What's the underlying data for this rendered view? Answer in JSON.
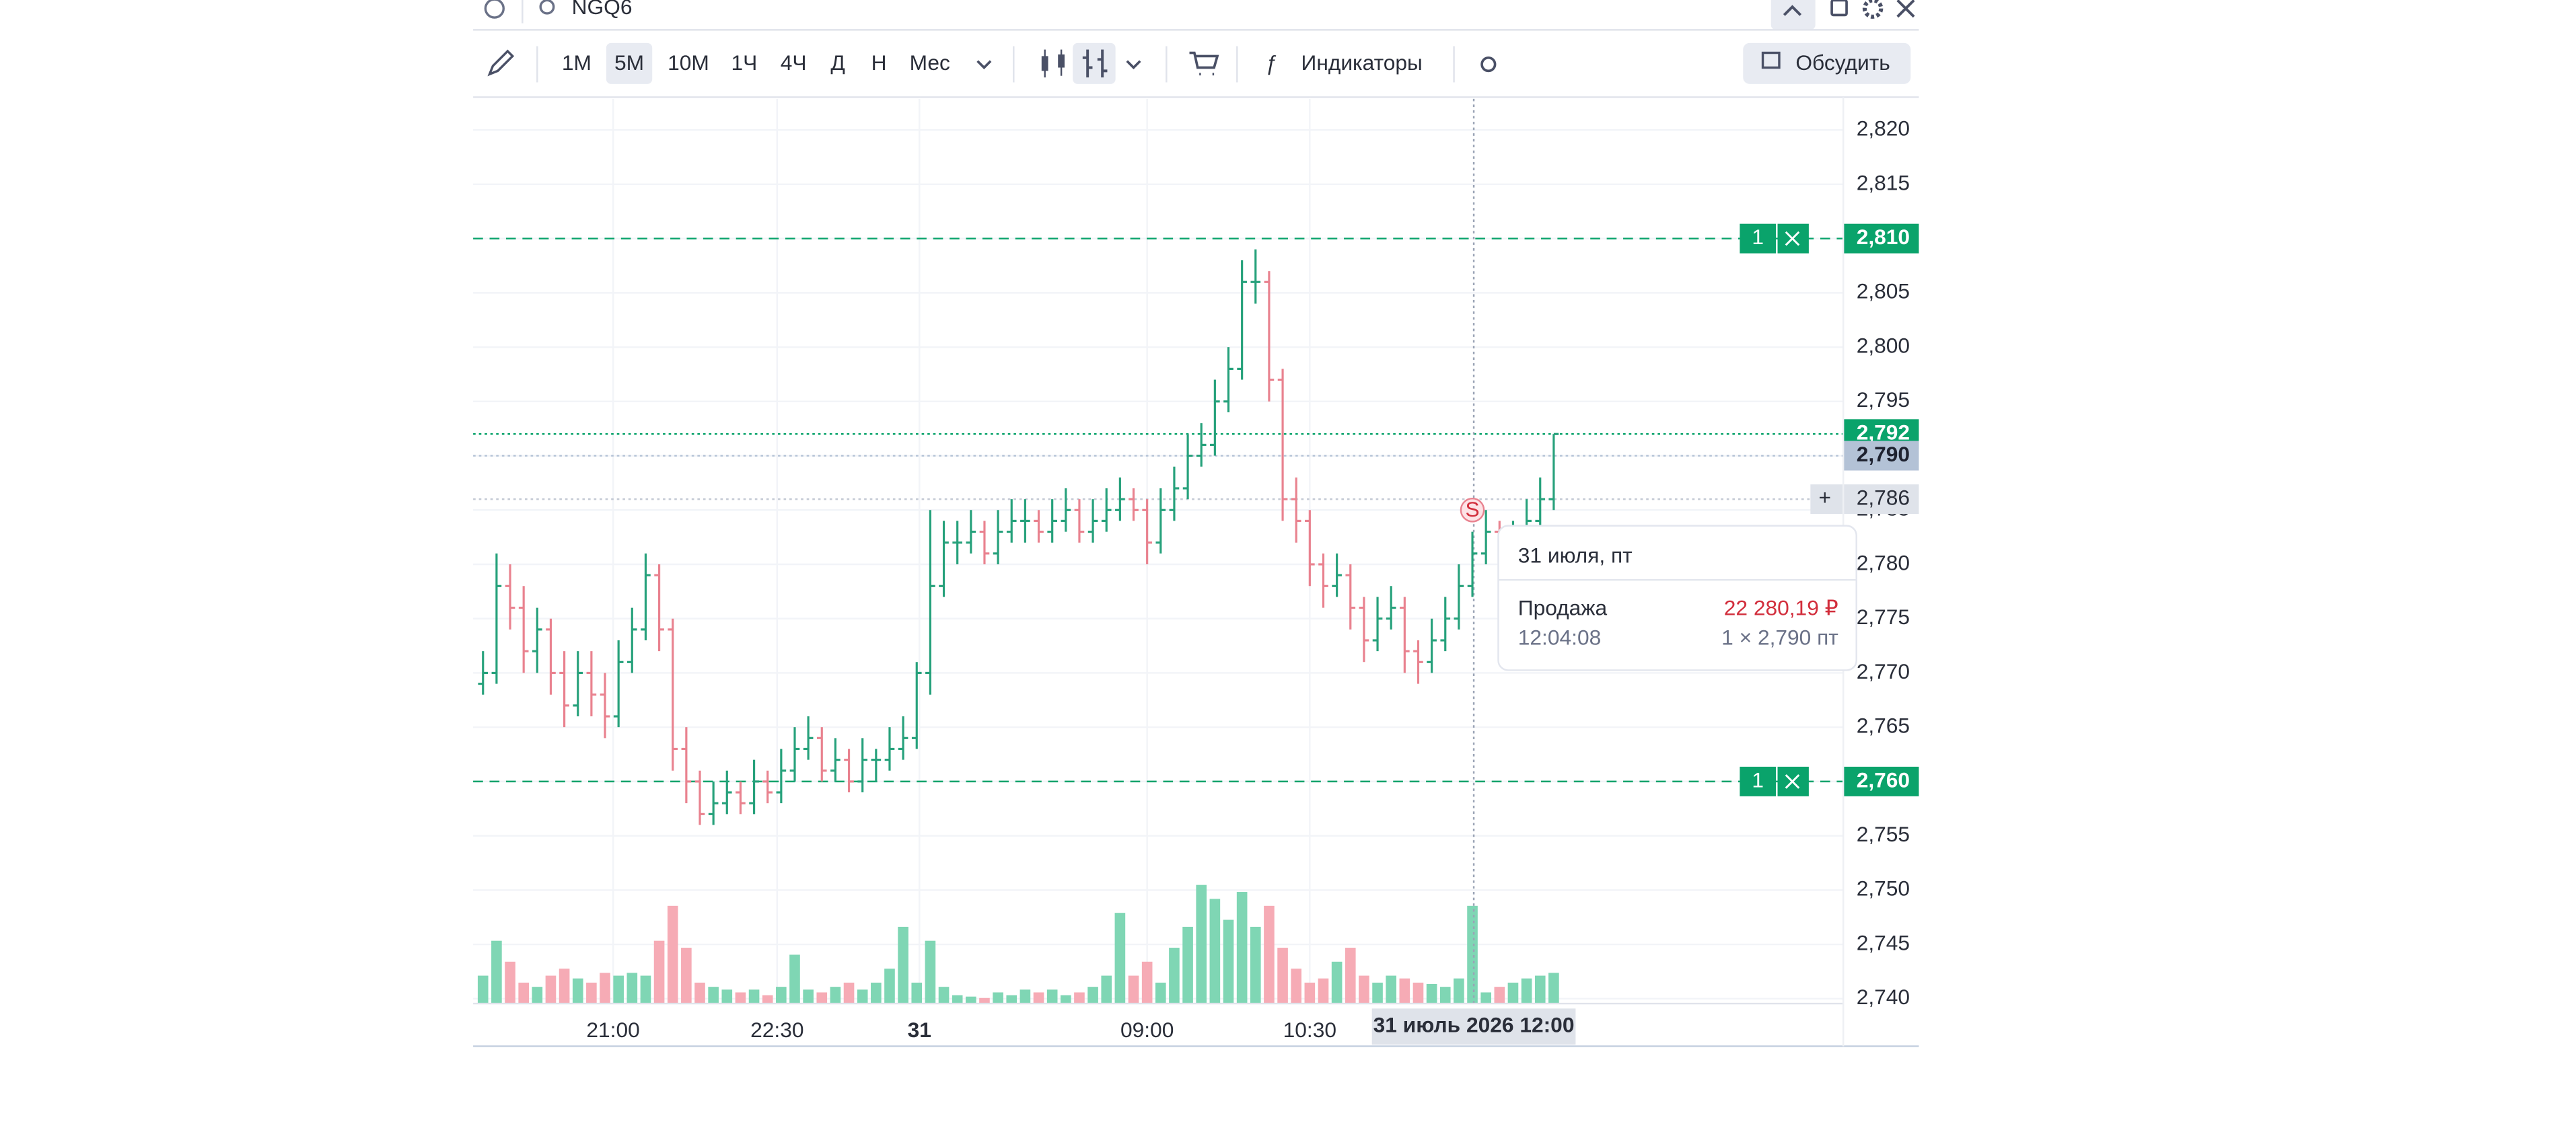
{
  "toolbar": {
    "symbol": "NGQ6",
    "timeframes": [
      "1М",
      "5М",
      "10М",
      "1Ч",
      "4Ч",
      "Д",
      "Н",
      "Мес"
    ],
    "selected_timeframe": 1,
    "indicators": "Индикаторы",
    "discuss": "Обсудить"
  },
  "chart_data": {
    "type": "ohlc",
    "up_color": "#26a17b",
    "down_color": "#e9828f",
    "ohlc": [
      [
        2.769,
        2.772,
        2.768,
        2.77
      ],
      [
        2.77,
        2.781,
        2.769,
        2.778
      ],
      [
        2.778,
        2.78,
        2.774,
        2.776
      ],
      [
        2.776,
        2.778,
        2.77,
        2.772
      ],
      [
        2.772,
        2.776,
        2.77,
        2.774
      ],
      [
        2.774,
        2.775,
        2.768,
        2.77
      ],
      [
        2.77,
        2.772,
        2.765,
        2.767
      ],
      [
        2.767,
        2.772,
        2.766,
        2.77
      ],
      [
        2.77,
        2.772,
        2.766,
        2.768
      ],
      [
        2.768,
        2.77,
        2.764,
        2.766
      ],
      [
        2.766,
        2.773,
        2.765,
        2.771
      ],
      [
        2.771,
        2.776,
        2.77,
        2.774
      ],
      [
        2.774,
        2.781,
        2.773,
        2.779
      ],
      [
        2.779,
        2.78,
        2.772,
        2.774
      ],
      [
        2.774,
        2.775,
        2.761,
        2.763
      ],
      [
        2.763,
        2.765,
        2.758,
        2.76
      ],
      [
        2.76,
        2.761,
        2.756,
        2.757
      ],
      [
        2.757,
        2.76,
        2.756,
        2.758
      ],
      [
        2.758,
        2.761,
        2.757,
        2.759
      ],
      [
        2.759,
        2.76,
        2.757,
        2.758
      ],
      [
        2.758,
        2.762,
        2.757,
        2.76
      ],
      [
        2.76,
        2.761,
        2.758,
        2.759
      ],
      [
        2.759,
        2.763,
        2.758,
        2.761
      ],
      [
        2.761,
        2.765,
        2.76,
        2.763
      ],
      [
        2.763,
        2.766,
        2.762,
        2.764
      ],
      [
        2.764,
        2.765,
        2.76,
        2.761
      ],
      [
        2.761,
        2.764,
        2.76,
        2.762
      ],
      [
        2.762,
        2.763,
        2.759,
        2.76
      ],
      [
        2.76,
        2.764,
        2.759,
        2.762
      ],
      [
        2.762,
        2.763,
        2.76,
        2.762
      ],
      [
        2.762,
        2.765,
        2.761,
        2.763
      ],
      [
        2.763,
        2.766,
        2.762,
        2.764
      ],
      [
        2.764,
        2.771,
        2.763,
        2.77
      ],
      [
        2.77,
        2.785,
        2.768,
        2.778
      ],
      [
        2.778,
        2.784,
        2.777,
        2.782
      ],
      [
        2.782,
        2.784,
        2.78,
        2.782
      ],
      [
        2.782,
        2.785,
        2.781,
        2.783
      ],
      [
        2.783,
        2.784,
        2.78,
        2.781
      ],
      [
        2.781,
        2.785,
        2.78,
        2.783
      ],
      [
        2.783,
        2.786,
        2.782,
        2.784
      ],
      [
        2.784,
        2.786,
        2.782,
        2.784
      ],
      [
        2.784,
        2.785,
        2.782,
        2.783
      ],
      [
        2.783,
        2.786,
        2.782,
        2.784
      ],
      [
        2.784,
        2.787,
        2.783,
        2.785
      ],
      [
        2.785,
        2.786,
        2.782,
        2.783
      ],
      [
        2.783,
        2.786,
        2.782,
        2.784
      ],
      [
        2.784,
        2.787,
        2.783,
        2.785
      ],
      [
        2.785,
        2.788,
        2.784,
        2.786
      ],
      [
        2.786,
        2.787,
        2.784,
        2.785
      ],
      [
        2.785,
        2.786,
        2.78,
        2.782
      ],
      [
        2.782,
        2.787,
        2.781,
        2.785
      ],
      [
        2.785,
        2.789,
        2.784,
        2.787
      ],
      [
        2.787,
        2.792,
        2.786,
        2.79
      ],
      [
        2.79,
        2.793,
        2.789,
        2.791
      ],
      [
        2.791,
        2.797,
        2.79,
        2.795
      ],
      [
        2.795,
        2.8,
        2.794,
        2.798
      ],
      [
        2.798,
        2.808,
        2.797,
        2.806
      ],
      [
        2.806,
        2.809,
        2.804,
        2.806
      ],
      [
        2.806,
        2.807,
        2.795,
        2.797
      ],
      [
        2.797,
        2.798,
        2.784,
        2.786
      ],
      [
        2.786,
        2.788,
        2.782,
        2.784
      ],
      [
        2.784,
        2.785,
        2.778,
        2.78
      ],
      [
        2.78,
        2.781,
        2.776,
        2.778
      ],
      [
        2.778,
        2.781,
        2.777,
        2.779
      ],
      [
        2.779,
        2.78,
        2.774,
        2.776
      ],
      [
        2.776,
        2.777,
        2.771,
        2.773
      ],
      [
        2.773,
        2.777,
        2.772,
        2.775
      ],
      [
        2.775,
        2.778,
        2.774,
        2.776
      ],
      [
        2.776,
        2.777,
        2.77,
        2.772
      ],
      [
        2.772,
        2.773,
        2.769,
        2.771
      ],
      [
        2.771,
        2.775,
        2.77,
        2.773
      ],
      [
        2.773,
        2.777,
        2.772,
        2.775
      ],
      [
        2.775,
        2.78,
        2.774,
        2.778
      ],
      [
        2.778,
        2.783,
        2.777,
        2.781
      ],
      [
        2.781,
        2.785,
        2.78,
        2.783
      ],
      [
        2.783,
        2.784,
        2.78,
        2.782
      ],
      [
        2.782,
        2.784,
        2.78,
        2.782
      ],
      [
        2.782,
        2.786,
        2.781,
        2.784
      ],
      [
        2.784,
        2.788,
        2.783,
        2.786
      ],
      [
        2.786,
        2.792,
        2.785,
        2.792
      ]
    ],
    "volumes": [
      20,
      45,
      30,
      15,
      12,
      20,
      25,
      18,
      15,
      22,
      20,
      22,
      20,
      45,
      70,
      40,
      15,
      12,
      10,
      8,
      10,
      6,
      12,
      35,
      10,
      8,
      12,
      15,
      10,
      15,
      25,
      55,
      15,
      45,
      12,
      6,
      5,
      4,
      8,
      6,
      10,
      8,
      10,
      6,
      8,
      12,
      20,
      65,
      20,
      30,
      15,
      40,
      55,
      85,
      75,
      60,
      80,
      55,
      70,
      40,
      25,
      15,
      18,
      30,
      40,
      20,
      15,
      20,
      18,
      15,
      14,
      12,
      18,
      70,
      8,
      12,
      15,
      18,
      20,
      22
    ],
    "vlim": [
      0,
      100
    ],
    "ylim": [
      2.73955,
      2.82287
    ],
    "yticks": [
      {
        "value": 2.74,
        "label": "2,740"
      },
      {
        "value": 2.745,
        "label": "2,745"
      },
      {
        "value": 2.75,
        "label": "2,750"
      },
      {
        "value": 2.755,
        "label": "2,755"
      },
      {
        "value": 2.76,
        "label": "2,760"
      },
      {
        "value": 2.765,
        "label": "2,765"
      },
      {
        "value": 2.77,
        "label": "2,770"
      },
      {
        "value": 2.775,
        "label": "2,775"
      },
      {
        "value": 2.78,
        "label": "2,780"
      },
      {
        "value": 2.785,
        "label": "2,785"
      },
      {
        "value": 2.79,
        "label": "2,790"
      },
      {
        "value": 2.795,
        "label": "2,795"
      },
      {
        "value": 2.8,
        "label": "2,800"
      },
      {
        "value": 2.805,
        "label": "2,805"
      },
      {
        "value": 2.81,
        "label": "2,810"
      },
      {
        "value": 2.815,
        "label": "2,815"
      },
      {
        "value": 2.82,
        "label": "2,820"
      }
    ],
    "xticks": [
      {
        "value": 9.6,
        "label": "21:00"
      },
      {
        "value": 21.7,
        "label": "22:30"
      },
      {
        "value": 32.2,
        "label": "31"
      },
      {
        "value": 49,
        "label": "09:00"
      },
      {
        "value": 61,
        "label": "10:30"
      }
    ],
    "grid": true,
    "levels": [
      {
        "value": 2.81,
        "label": "2,810",
        "qty": 1,
        "color": "#0aa36b",
        "style": "dashed"
      },
      {
        "value": 2.76,
        "label": "2,760",
        "qty": 1,
        "color": "#0aa36b",
        "style": "dashed"
      },
      {
        "value": 2.792,
        "label": "2,792",
        "color": "#0aa36b",
        "style": "dotted"
      },
      {
        "value": 2.79,
        "label": "2,790",
        "color": "#b3c2d6",
        "style": "dotted"
      }
    ],
    "crosshair": {
      "x": 73.1,
      "x_label": "31 июль 2026 12:00",
      "y": {
        "value": 2.786,
        "label": "2,786"
      }
    },
    "trade_marker": {
      "label": "S",
      "x": 73,
      "price": 2.785
    }
  },
  "tooltip": {
    "date": "31 июля, пт",
    "side": "Продажа",
    "amount": "22 280,19 ₽",
    "time": "12:04:08",
    "detail": "1 × 2,790 пт"
  }
}
